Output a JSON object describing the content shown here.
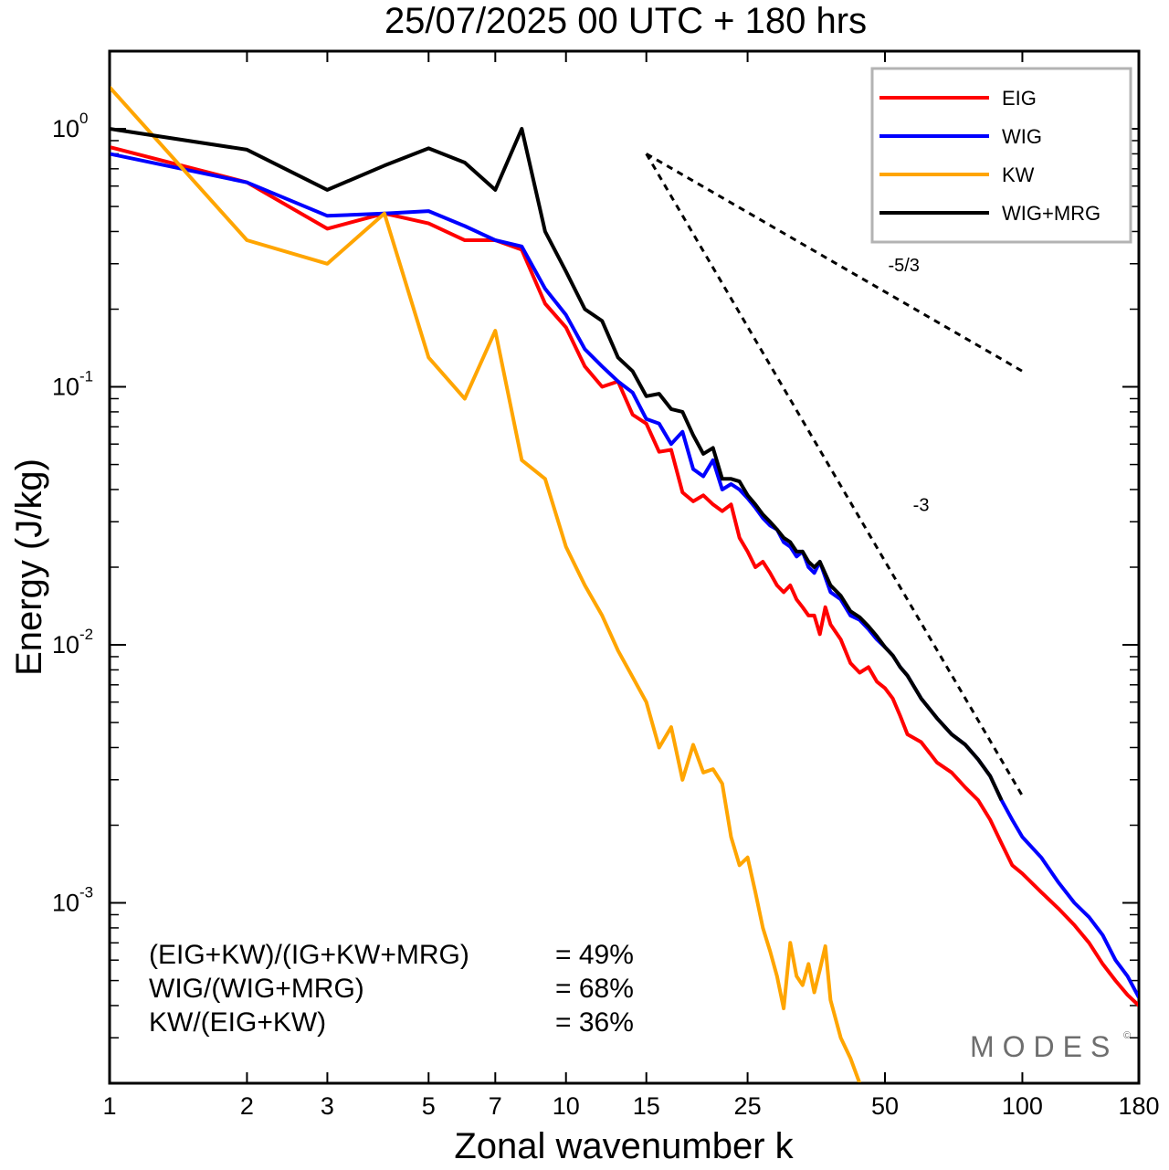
{
  "chart_data": {
    "type": "line",
    "title": "25/07/2025  00 UTC  + 180 hrs",
    "xlabel": "Zonal wavenumber k",
    "ylabel": "Energy (J/kg)",
    "xscale": "log",
    "yscale": "log",
    "xlim": [
      1,
      180
    ],
    "ylim": [
      0.0002,
      2
    ],
    "xticks": [
      1,
      2,
      3,
      5,
      7,
      10,
      15,
      25,
      50,
      100,
      180
    ],
    "xtick_labels": [
      "1",
      "2",
      "3",
      "5",
      "7",
      "10",
      "15",
      "25",
      "50",
      "100",
      "180"
    ],
    "yticks": [
      {
        "value": 1,
        "base": "10",
        "exp": "0"
      },
      {
        "value": 0.1,
        "base": "10",
        "exp": "-1"
      },
      {
        "value": 0.01,
        "base": "10",
        "exp": "-2"
      },
      {
        "value": 0.001,
        "base": "10",
        "exp": "-3"
      }
    ],
    "legend_position": "top-right",
    "series": [
      {
        "name": "EIG",
        "color": "#ff0000",
        "points": [
          [
            1,
            0.85
          ],
          [
            2,
            0.62
          ],
          [
            3,
            0.41
          ],
          [
            4,
            0.47
          ],
          [
            5,
            0.43
          ],
          [
            6,
            0.37
          ],
          [
            7,
            0.37
          ],
          [
            8,
            0.34
          ],
          [
            9,
            0.21
          ],
          [
            10,
            0.17
          ],
          [
            11,
            0.12
          ],
          [
            12,
            0.1
          ],
          [
            13,
            0.105
          ],
          [
            14,
            0.078
          ],
          [
            15,
            0.072
          ],
          [
            16,
            0.056
          ],
          [
            17,
            0.057
          ],
          [
            18,
            0.039
          ],
          [
            19,
            0.036
          ],
          [
            20,
            0.038
          ],
          [
            21,
            0.035
          ],
          [
            22,
            0.033
          ],
          [
            23,
            0.035
          ],
          [
            24,
            0.026
          ],
          [
            25,
            0.023
          ],
          [
            26,
            0.02
          ],
          [
            27,
            0.021
          ],
          [
            28,
            0.019
          ],
          [
            29,
            0.017
          ],
          [
            30,
            0.016
          ],
          [
            31,
            0.017
          ],
          [
            32,
            0.015
          ],
          [
            33,
            0.014
          ],
          [
            34,
            0.013
          ],
          [
            35,
            0.013
          ],
          [
            36,
            0.011
          ],
          [
            37,
            0.014
          ],
          [
            38,
            0.012
          ],
          [
            40,
            0.0105
          ],
          [
            42,
            0.0085
          ],
          [
            44,
            0.0078
          ],
          [
            46,
            0.0082
          ],
          [
            48,
            0.0072
          ],
          [
            50,
            0.0068
          ],
          [
            52,
            0.0062
          ],
          [
            54,
            0.0053
          ],
          [
            56,
            0.0045
          ],
          [
            60,
            0.0042
          ],
          [
            65,
            0.0035
          ],
          [
            70,
            0.0032
          ],
          [
            75,
            0.0028
          ],
          [
            80,
            0.0025
          ],
          [
            85,
            0.0021
          ],
          [
            90,
            0.0017
          ],
          [
            95,
            0.0014
          ],
          [
            100,
            0.0013
          ],
          [
            110,
            0.0011
          ],
          [
            120,
            0.00095
          ],
          [
            130,
            0.00082
          ],
          [
            140,
            0.0007
          ],
          [
            150,
            0.00058
          ],
          [
            160,
            0.0005
          ],
          [
            170,
            0.00044
          ],
          [
            180,
            0.0004
          ]
        ]
      },
      {
        "name": "WIG",
        "color": "#0000ff",
        "points": [
          [
            1,
            0.8
          ],
          [
            2,
            0.62
          ],
          [
            3,
            0.46
          ],
          [
            4,
            0.47
          ],
          [
            5,
            0.48
          ],
          [
            6,
            0.42
          ],
          [
            7,
            0.37
          ],
          [
            8,
            0.35
          ],
          [
            9,
            0.24
          ],
          [
            10,
            0.19
          ],
          [
            11,
            0.14
          ],
          [
            12,
            0.12
          ],
          [
            13,
            0.105
          ],
          [
            14,
            0.095
          ],
          [
            15,
            0.075
          ],
          [
            16,
            0.072
          ],
          [
            17,
            0.06
          ],
          [
            18,
            0.067
          ],
          [
            19,
            0.048
          ],
          [
            20,
            0.045
          ],
          [
            21,
            0.052
          ],
          [
            22,
            0.04
          ],
          [
            23,
            0.042
          ],
          [
            24,
            0.04
          ],
          [
            25,
            0.037
          ],
          [
            26,
            0.034
          ],
          [
            27,
            0.031
          ],
          [
            28,
            0.029
          ],
          [
            29,
            0.028
          ],
          [
            30,
            0.025
          ],
          [
            31,
            0.024
          ],
          [
            32,
            0.022
          ],
          [
            33,
            0.023
          ],
          [
            34,
            0.02
          ],
          [
            35,
            0.019
          ],
          [
            36,
            0.021
          ],
          [
            38,
            0.016
          ],
          [
            40,
            0.015
          ],
          [
            42,
            0.013
          ],
          [
            44,
            0.0125
          ],
          [
            46,
            0.0115
          ],
          [
            48,
            0.0105
          ],
          [
            50,
            0.0098
          ],
          [
            52,
            0.0091
          ],
          [
            54,
            0.0082
          ],
          [
            56,
            0.0076
          ],
          [
            60,
            0.0062
          ],
          [
            65,
            0.0052
          ],
          [
            70,
            0.0045
          ],
          [
            75,
            0.0041
          ],
          [
            80,
            0.0036
          ],
          [
            85,
            0.0031
          ],
          [
            90,
            0.0025
          ],
          [
            95,
            0.0021
          ],
          [
            100,
            0.0018
          ],
          [
            110,
            0.0015
          ],
          [
            120,
            0.0012
          ],
          [
            130,
            0.001
          ],
          [
            140,
            0.00088
          ],
          [
            150,
            0.00075
          ],
          [
            160,
            0.0006
          ],
          [
            170,
            0.00052
          ],
          [
            180,
            0.00043
          ]
        ]
      },
      {
        "name": "KW",
        "color": "#ffa500",
        "points": [
          [
            1,
            1.45
          ],
          [
            2,
            0.37
          ],
          [
            3,
            0.3
          ],
          [
            4,
            0.47
          ],
          [
            5,
            0.13
          ],
          [
            6,
            0.09
          ],
          [
            7,
            0.165
          ],
          [
            8,
            0.052
          ],
          [
            9,
            0.044
          ],
          [
            10,
            0.024
          ],
          [
            11,
            0.017
          ],
          [
            12,
            0.013
          ],
          [
            13,
            0.0095
          ],
          [
            14,
            0.0075
          ],
          [
            15,
            0.006
          ],
          [
            16,
            0.004
          ],
          [
            17,
            0.0048
          ],
          [
            18,
            0.003
          ],
          [
            19,
            0.0041
          ],
          [
            20,
            0.0032
          ],
          [
            21,
            0.0033
          ],
          [
            22,
            0.0029
          ],
          [
            23,
            0.0018
          ],
          [
            24,
            0.0014
          ],
          [
            25,
            0.0015
          ],
          [
            26,
            0.0011
          ],
          [
            27,
            0.0008
          ],
          [
            28,
            0.00065
          ],
          [
            29,
            0.00052
          ],
          [
            30,
            0.00039
          ],
          [
            31,
            0.0007
          ],
          [
            32,
            0.00052
          ],
          [
            33,
            0.00048
          ],
          [
            34,
            0.00058
          ],
          [
            35,
            0.00045
          ],
          [
            36,
            0.00055
          ],
          [
            37,
            0.00068
          ],
          [
            38,
            0.00042
          ],
          [
            40,
            0.0003
          ],
          [
            42,
            0.00025
          ],
          [
            44,
            0.0002
          ]
        ]
      },
      {
        "name": "WIG+MRG",
        "color": "#000000",
        "points": [
          [
            1,
            1.0
          ],
          [
            2,
            0.83
          ],
          [
            3,
            0.58
          ],
          [
            4,
            0.72
          ],
          [
            5,
            0.84
          ],
          [
            6,
            0.74
          ],
          [
            7,
            0.58
          ],
          [
            8,
            1.0
          ],
          [
            9,
            0.4
          ],
          [
            10,
            0.28
          ],
          [
            11,
            0.2
          ],
          [
            12,
            0.18
          ],
          [
            13,
            0.13
          ],
          [
            14,
            0.115
          ],
          [
            15,
            0.092
          ],
          [
            16,
            0.094
          ],
          [
            17,
            0.082
          ],
          [
            18,
            0.08
          ],
          [
            19,
            0.065
          ],
          [
            20,
            0.055
          ],
          [
            21,
            0.058
          ],
          [
            22,
            0.044
          ],
          [
            23,
            0.044
          ],
          [
            24,
            0.043
          ],
          [
            25,
            0.038
          ],
          [
            26,
            0.035
          ],
          [
            27,
            0.032
          ],
          [
            28,
            0.03
          ],
          [
            29,
            0.028
          ],
          [
            30,
            0.026
          ],
          [
            31,
            0.025
          ],
          [
            32,
            0.023
          ],
          [
            33,
            0.023
          ],
          [
            34,
            0.021
          ],
          [
            35,
            0.02
          ],
          [
            36,
            0.021
          ],
          [
            38,
            0.017
          ],
          [
            40,
            0.0155
          ],
          [
            42,
            0.0135
          ],
          [
            44,
            0.0128
          ],
          [
            46,
            0.0118
          ],
          [
            48,
            0.0108
          ],
          [
            50,
            0.0098
          ],
          [
            52,
            0.0091
          ],
          [
            54,
            0.0082
          ],
          [
            56,
            0.0076
          ],
          [
            60,
            0.0062
          ],
          [
            65,
            0.0052
          ],
          [
            70,
            0.0045
          ],
          [
            75,
            0.0041
          ],
          [
            80,
            0.0036
          ],
          [
            85,
            0.0031
          ],
          [
            90,
            0.0025
          ]
        ]
      }
    ],
    "reference_slopes": [
      {
        "label": "-5/3",
        "x_start": 15,
        "y_start": 0.8,
        "x_end": 100,
        "y_end": 0.115,
        "label_x": 55,
        "label_y": 0.28
      },
      {
        "label": "-3",
        "x_start": 15,
        "y_start": 0.8,
        "x_end": 100,
        "y_end": 0.0026,
        "label_x": 60,
        "label_y": 0.033
      }
    ],
    "annotations": [
      {
        "label": "(EIG+KW)/(IG+KW+MRG)",
        "value": "= 49%"
      },
      {
        "label": "WIG/(WIG+MRG)",
        "value": "= 68%"
      },
      {
        "label": "KW/(EIG+KW)",
        "value": "= 36%"
      }
    ],
    "watermark": "MODES"
  }
}
